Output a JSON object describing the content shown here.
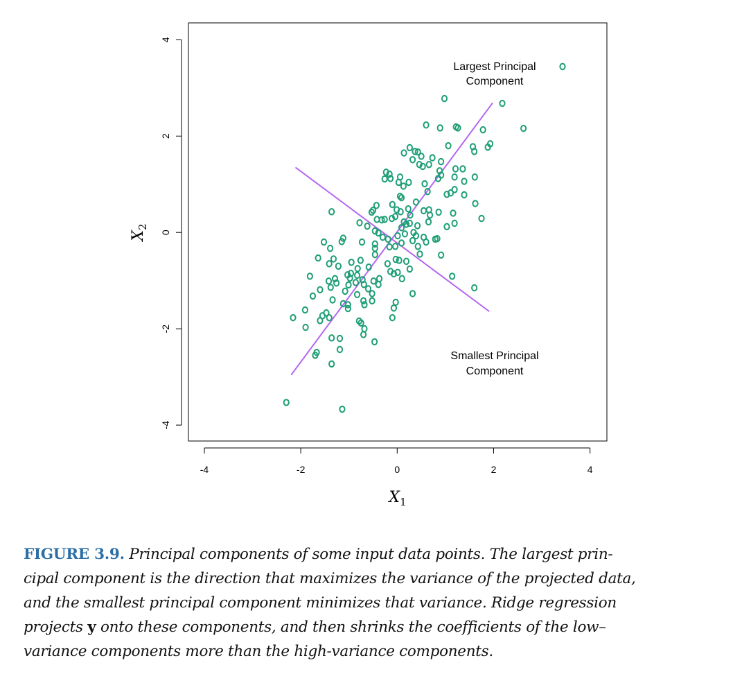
{
  "chart_data": {
    "type": "scatter",
    "xlabel": "X1",
    "ylabel": "X2",
    "xlim": [
      -4.33,
      4.35
    ],
    "ylim": [
      -4.33,
      4.35
    ],
    "xticks": [
      "-4",
      "-2",
      "0",
      "2",
      "4"
    ],
    "yticks": [
      "-4",
      "-2",
      "0",
      "2",
      "4"
    ],
    "grid": false,
    "colors": {
      "points": "#1f9e77",
      "lines": "#b366f2"
    },
    "marker": "o",
    "legend": {
      "label_line1": "Largest Principal",
      "label_line2": "Component",
      "placement": "top-right"
    },
    "annotation": {
      "line1": "Smallest Principal",
      "line2": "Component"
    },
    "lines": [
      {
        "id": "largest-pc",
        "x": [
          -2.2,
          1.98
        ],
        "y": [
          -2.96,
          2.69
        ]
      },
      {
        "id": "smallest-pc",
        "x": [
          -2.11,
          1.91
        ],
        "y": [
          1.35,
          -1.64
        ]
      }
    ],
    "points": [
      [
        0.98,
        2.78
      ],
      [
        2.18,
        2.68
      ],
      [
        2.62,
        2.16
      ],
      [
        0.6,
        2.23
      ],
      [
        0.89,
        2.17
      ],
      [
        1.22,
        2.19
      ],
      [
        1.26,
        2.17
      ],
      [
        1.78,
        2.13
      ],
      [
        1.57,
        1.78
      ],
      [
        1.6,
        1.68
      ],
      [
        1.93,
        1.84
      ],
      [
        1.88,
        1.77
      ],
      [
        1.06,
        1.8
      ],
      [
        0.26,
        1.76
      ],
      [
        0.14,
        1.65
      ],
      [
        0.37,
        1.68
      ],
      [
        0.43,
        1.67
      ],
      [
        0.5,
        1.58
      ],
      [
        0.73,
        1.55
      ],
      [
        0.32,
        1.51
      ],
      [
        0.46,
        1.41
      ],
      [
        0.53,
        1.37
      ],
      [
        0.66,
        1.41
      ],
      [
        0.91,
        1.47
      ],
      [
        0.88,
        1.28
      ],
      [
        0.91,
        1.19
      ],
      [
        1.21,
        1.32
      ],
      [
        1.36,
        1.32
      ],
      [
        1.19,
        1.15
      ],
      [
        1.39,
        1.06
      ],
      [
        1.61,
        1.15
      ],
      [
        0.85,
        1.12
      ],
      [
        -0.23,
        1.25
      ],
      [
        -0.16,
        1.21
      ],
      [
        -0.26,
        1.11
      ],
      [
        -0.14,
        1.12
      ],
      [
        0.06,
        1.15
      ],
      [
        0.03,
        1.04
      ],
      [
        0.24,
        1.04
      ],
      [
        0.13,
        0.96
      ],
      [
        0.57,
        1.01
      ],
      [
        0.63,
        0.85
      ],
      [
        1.03,
        0.79
      ],
      [
        1.11,
        0.82
      ],
      [
        1.19,
        0.89
      ],
      [
        1.39,
        0.78
      ],
      [
        1.62,
        0.6
      ],
      [
        0.06,
        0.75
      ],
      [
        0.09,
        0.72
      ],
      [
        0.39,
        0.63
      ],
      [
        -0.43,
        0.56
      ],
      [
        -0.5,
        0.46
      ],
      [
        -0.53,
        0.42
      ],
      [
        -0.1,
        0.58
      ],
      [
        -0.01,
        0.47
      ],
      [
        0.07,
        0.43
      ],
      [
        0.23,
        0.49
      ],
      [
        0.27,
        0.36
      ],
      [
        0.55,
        0.45
      ],
      [
        0.66,
        0.47
      ],
      [
        0.68,
        0.36
      ],
      [
        0.86,
        0.42
      ],
      [
        1.16,
        0.4
      ],
      [
        1.75,
        0.29
      ],
      [
        -1.36,
        0.43
      ],
      [
        -0.78,
        0.2
      ],
      [
        -0.62,
        0.13
      ],
      [
        -0.42,
        0.27
      ],
      [
        -0.32,
        0.26
      ],
      [
        -0.26,
        0.27
      ],
      [
        -0.11,
        0.29
      ],
      [
        -0.04,
        0.33
      ],
      [
        0.14,
        0.22
      ],
      [
        0.19,
        0.17
      ],
      [
        0.26,
        0.19
      ],
      [
        0.09,
        0.1
      ],
      [
        0.42,
        0.14
      ],
      [
        0.65,
        0.22
      ],
      [
        1.03,
        0.12
      ],
      [
        1.19,
        0.19
      ],
      [
        -0.46,
        0.03
      ],
      [
        -0.39,
        -0.01
      ],
      [
        -0.3,
        -0.1
      ],
      [
        -0.19,
        -0.14
      ],
      [
        0.01,
        -0.07
      ],
      [
        0.16,
        -0.03
      ],
      [
        0.34,
        0.0
      ],
      [
        0.39,
        -0.07
      ],
      [
        0.55,
        -0.1
      ],
      [
        0.79,
        -0.14
      ],
      [
        0.6,
        -0.2
      ],
      [
        0.83,
        -0.13
      ],
      [
        0.43,
        -0.29
      ],
      [
        0.32,
        -0.17
      ],
      [
        0.09,
        -0.22
      ],
      [
        -0.04,
        -0.29
      ],
      [
        -0.16,
        -0.3
      ],
      [
        -1.12,
        -0.12
      ],
      [
        -1.52,
        -0.2
      ],
      [
        -1.39,
        -0.33
      ],
      [
        -1.15,
        -0.19
      ],
      [
        -0.73,
        -0.2
      ],
      [
        -0.46,
        -0.24
      ],
      [
        -0.46,
        -0.33
      ],
      [
        -0.46,
        -0.46
      ],
      [
        0.91,
        -0.47
      ],
      [
        0.47,
        -0.45
      ],
      [
        -1.64,
        -0.53
      ],
      [
        -1.32,
        -0.55
      ],
      [
        -1.41,
        -0.65
      ],
      [
        -1.22,
        -0.7
      ],
      [
        -0.95,
        -0.62
      ],
      [
        -0.76,
        -0.58
      ],
      [
        -0.82,
        -0.75
      ],
      [
        -0.59,
        -0.72
      ],
      [
        -0.2,
        -0.65
      ],
      [
        -0.03,
        -0.56
      ],
      [
        0.04,
        -0.58
      ],
      [
        0.19,
        -0.6
      ],
      [
        0.26,
        -0.76
      ],
      [
        -0.14,
        -0.81
      ],
      [
        0.01,
        -0.83
      ],
      [
        0.1,
        -0.96
      ],
      [
        -0.07,
        -0.86
      ],
      [
        -1.81,
        -0.91
      ],
      [
        -1.6,
        -1.19
      ],
      [
        -1.29,
        -0.96
      ],
      [
        -1.26,
        -1.05
      ],
      [
        -1.42,
        -1.01
      ],
      [
        -1.03,
        -0.88
      ],
      [
        -0.96,
        -0.85
      ],
      [
        -0.98,
        -0.95
      ],
      [
        -0.83,
        -0.89
      ],
      [
        -0.72,
        -0.98
      ],
      [
        -0.86,
        -1.04
      ],
      [
        -0.69,
        -1.08
      ],
      [
        -0.6,
        -1.17
      ],
      [
        -0.49,
        -1.01
      ],
      [
        -0.37,
        -0.96
      ],
      [
        -0.39,
        -1.08
      ],
      [
        -1.01,
        -1.09
      ],
      [
        -1.08,
        -1.22
      ],
      [
        -1.38,
        -1.14
      ],
      [
        -0.83,
        -1.29
      ],
      [
        -0.52,
        -1.27
      ],
      [
        0.32,
        -1.27
      ],
      [
        1.6,
        -1.15
      ],
      [
        1.14,
        -0.91
      ],
      [
        -0.7,
        -1.42
      ],
      [
        -0.68,
        -1.5
      ],
      [
        -0.52,
        -1.42
      ],
      [
        -0.03,
        -1.45
      ],
      [
        -0.07,
        -1.57
      ],
      [
        -0.1,
        -1.77
      ],
      [
        -1.75,
        -1.32
      ],
      [
        -1.34,
        -1.4
      ],
      [
        -1.12,
        -1.48
      ],
      [
        -1.02,
        -1.5
      ],
      [
        -1.02,
        -1.58
      ],
      [
        -1.91,
        -1.61
      ],
      [
        -2.16,
        -1.77
      ],
      [
        -1.55,
        -1.73
      ],
      [
        -1.47,
        -1.67
      ],
      [
        -1.41,
        -1.77
      ],
      [
        -1.6,
        -1.83
      ],
      [
        -1.9,
        -1.97
      ],
      [
        -0.79,
        -1.84
      ],
      [
        -0.75,
        -1.88
      ],
      [
        -0.68,
        -2.0
      ],
      [
        -0.7,
        -2.12
      ],
      [
        -0.47,
        -2.27
      ],
      [
        -1.36,
        -2.19
      ],
      [
        -1.19,
        -2.2
      ],
      [
        -1.19,
        -2.43
      ],
      [
        -1.67,
        -2.49
      ],
      [
        -1.7,
        -2.55
      ],
      [
        -1.36,
        -2.73
      ],
      [
        -2.3,
        -3.53
      ],
      [
        -1.14,
        -3.67
      ]
    ]
  },
  "caption": {
    "label": "FIGURE 3.9.",
    "line1": " Principal components of some input data points. The largest prin-",
    "line2": "cipal component is the direction that maximizes the variance of the projected data,",
    "line3": "and the smallest principal component minimizes that variance. Ridge regression",
    "line4a": "projects ",
    "line4b": "y",
    "line4c": " onto these components, and then shrinks the coefficients of the low–",
    "line5": "variance components more than the high-variance components."
  }
}
